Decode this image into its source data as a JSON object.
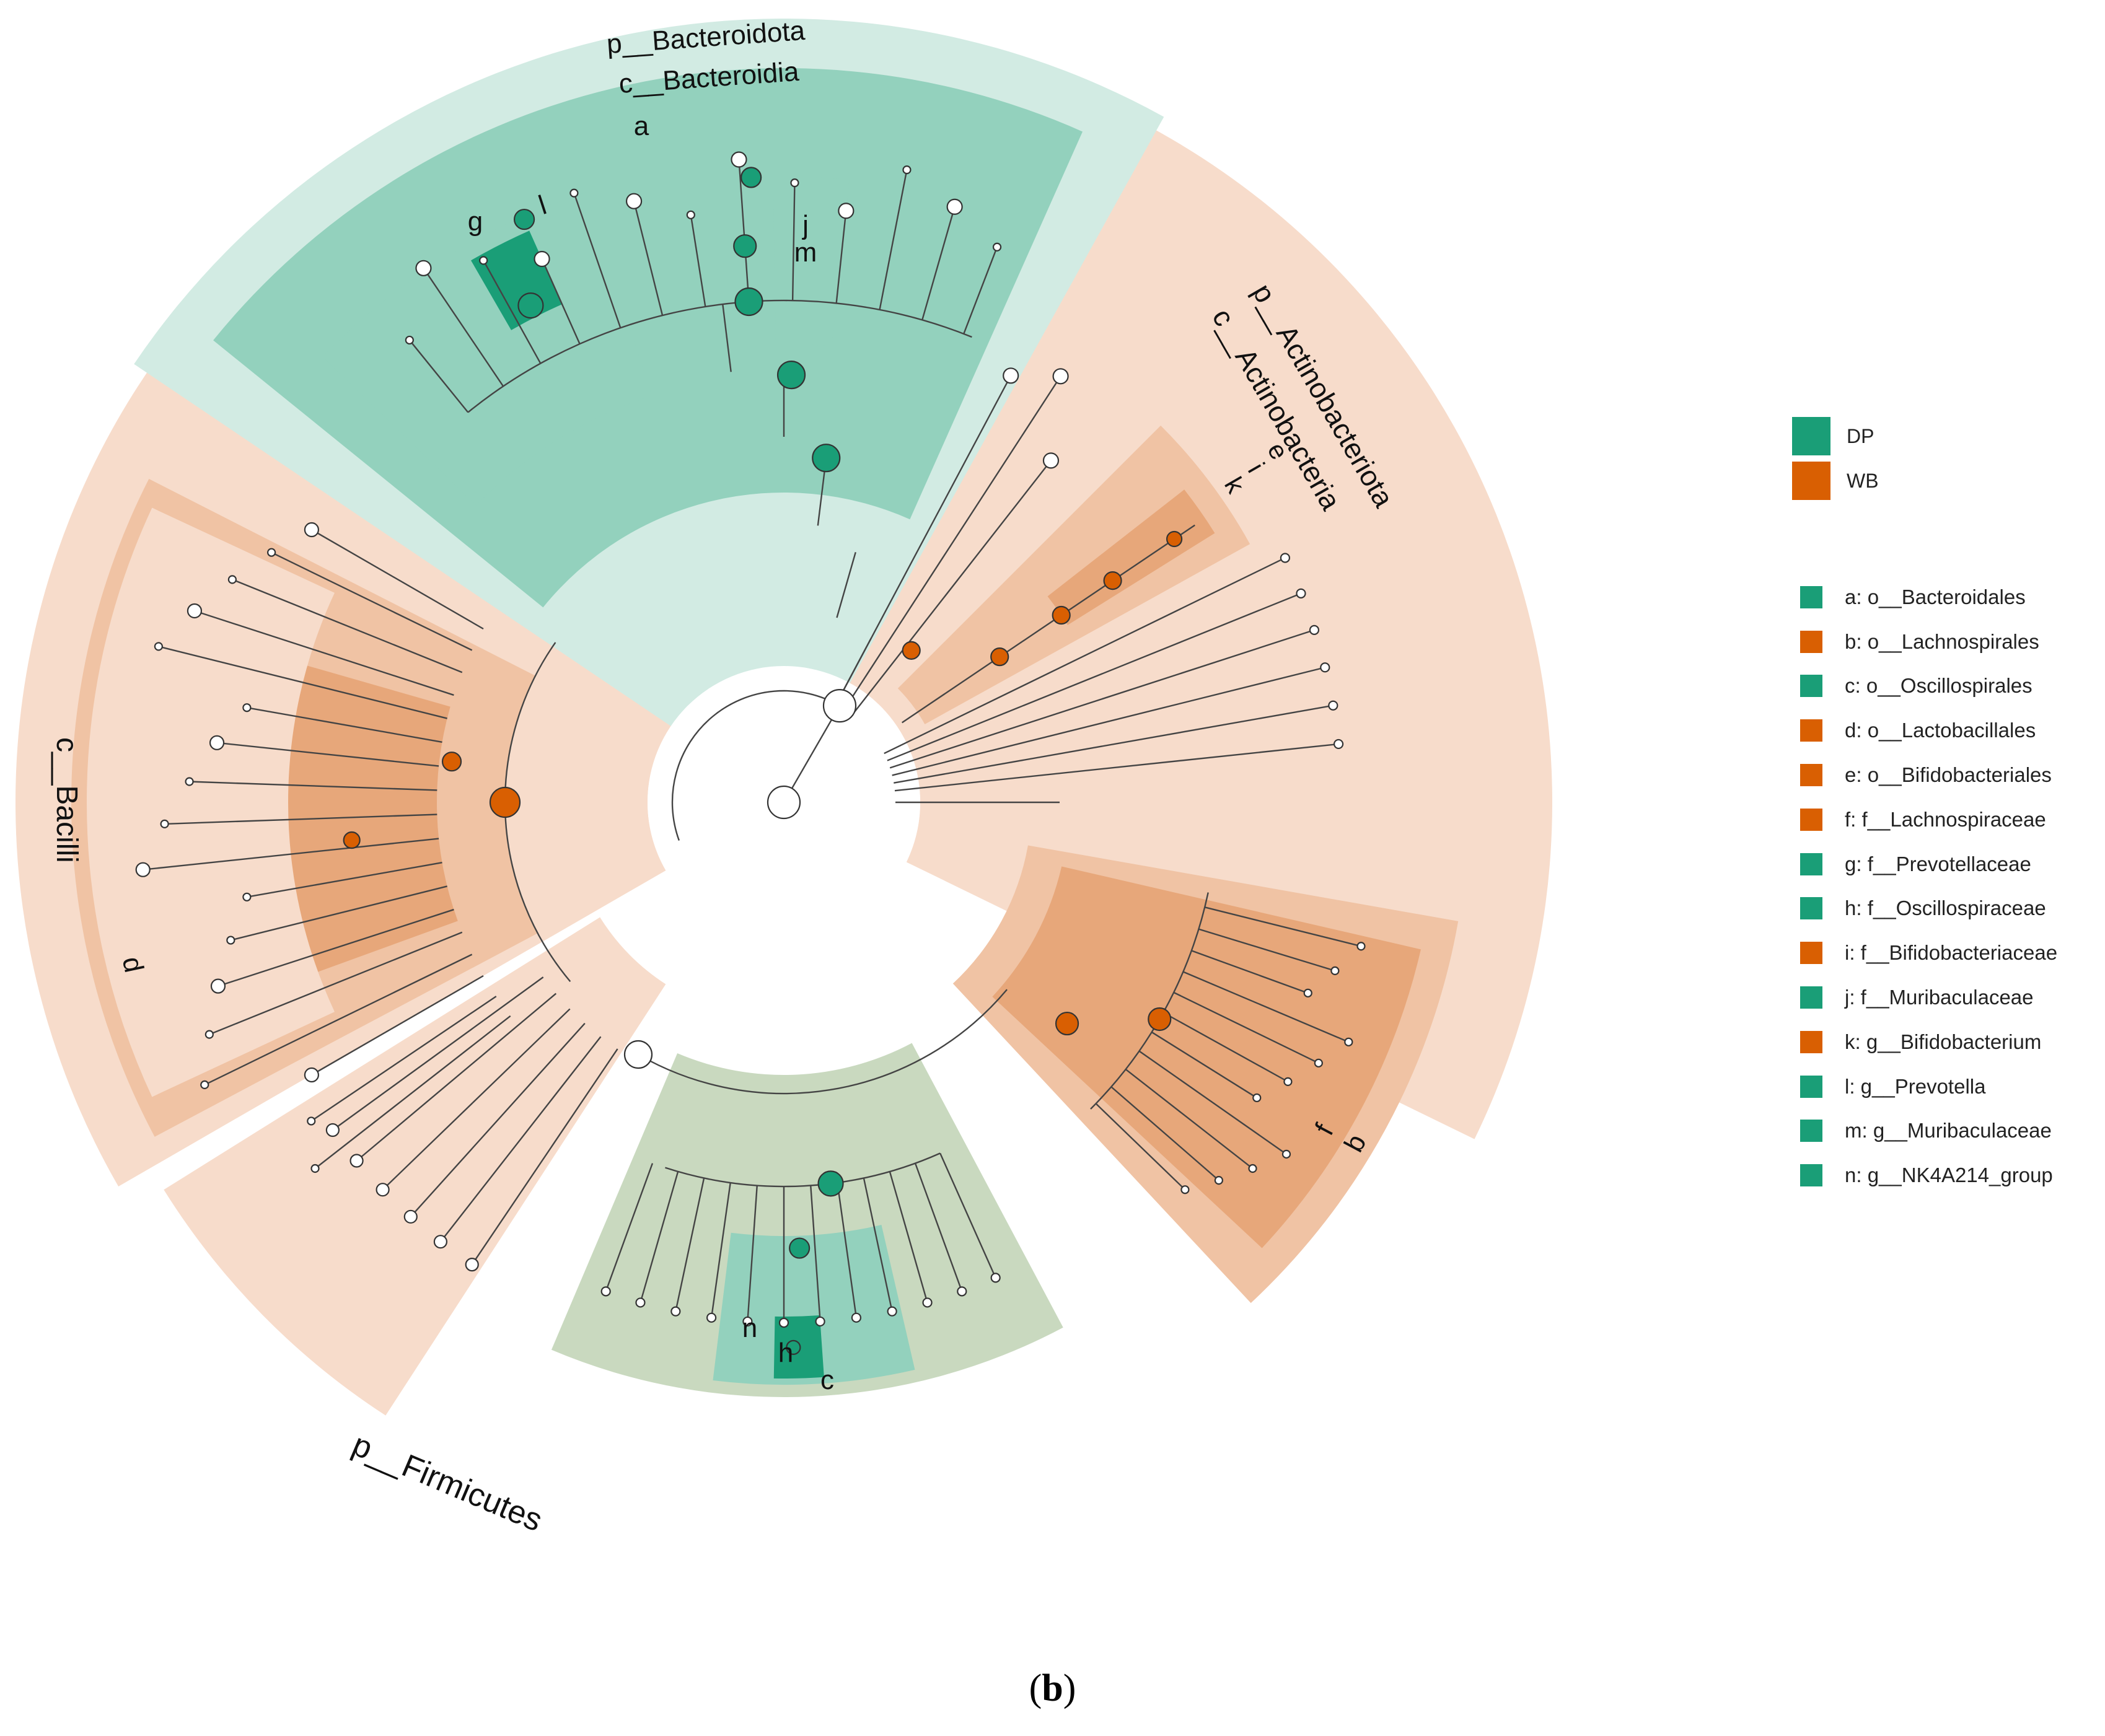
{
  "colors": {
    "DP": "#1a9e77",
    "WB": "#d95f02",
    "firmicutes_bg": "#f7dccb",
    "bacteroidota_bg": "#d2ebe3",
    "order_dp": "#93d1bd",
    "order_wb": "#f0c3a4",
    "family_wb": "#e7a77a",
    "oscillo_bg": "#c9d9bf",
    "node_white": "#ffffff",
    "line": "#444444"
  },
  "groups": [
    {
      "name": "DP",
      "color": "#1a9e77"
    },
    {
      "name": "WB",
      "color": "#d95f02"
    }
  ],
  "clades": [
    {
      "key": "a",
      "text": "a: o__Bacteroidales",
      "color": "#1a9e77"
    },
    {
      "key": "b",
      "text": "b: o__Lachnospirales",
      "color": "#d95f02"
    },
    {
      "key": "c",
      "text": "c: o__Oscillospirales",
      "color": "#1a9e77"
    },
    {
      "key": "d",
      "text": "d: o__Lactobacillales",
      "color": "#d95f02"
    },
    {
      "key": "e",
      "text": "e: o__Bifidobacteriales",
      "color": "#d95f02"
    },
    {
      "key": "f",
      "text": "f: f__Lachnospiraceae",
      "color": "#d95f02"
    },
    {
      "key": "g",
      "text": "g: f__Prevotellaceae",
      "color": "#1a9e77"
    },
    {
      "key": "h",
      "text": "h: f__Oscillospiraceae",
      "color": "#1a9e77"
    },
    {
      "key": "i",
      "text": "i: f__Bifidobacteriaceae",
      "color": "#d95f02"
    },
    {
      "key": "j",
      "text": "j: f__Muribaculaceae",
      "color": "#1a9e77"
    },
    {
      "key": "k",
      "text": "k: g__Bifidobacterium",
      "color": "#d95f02"
    },
    {
      "key": "l",
      "text": "l: g__Prevotella",
      "color": "#1a9e77"
    },
    {
      "key": "m",
      "text": "m: g__Muribaculaceae",
      "color": "#1a9e77"
    },
    {
      "key": "n",
      "text": "n: g__NK4A214_group",
      "color": "#1a9e77"
    }
  ],
  "ring_labels": {
    "p_bacteroidota": "p__Bacteroidota",
    "c_bacteroidia": "c__Bacteroidia",
    "p_actinobacteriota": "p__Actinobacteriota",
    "c_actinobacteria": "c__Actinobacteria",
    "c_bacilli": "c__Bacilli",
    "p_firmicutes": "p__Firmicutes"
  },
  "clade_letters": {
    "a": "a",
    "b": "b",
    "c": "c",
    "d": "d",
    "e": "e",
    "f": "f",
    "g": "g",
    "h": "h",
    "i": "i",
    "j": "j",
    "k": "k",
    "l": "l",
    "m": "m",
    "n": "n"
  },
  "caption": {
    "open": "(",
    "letter": "b",
    "close": ")"
  }
}
